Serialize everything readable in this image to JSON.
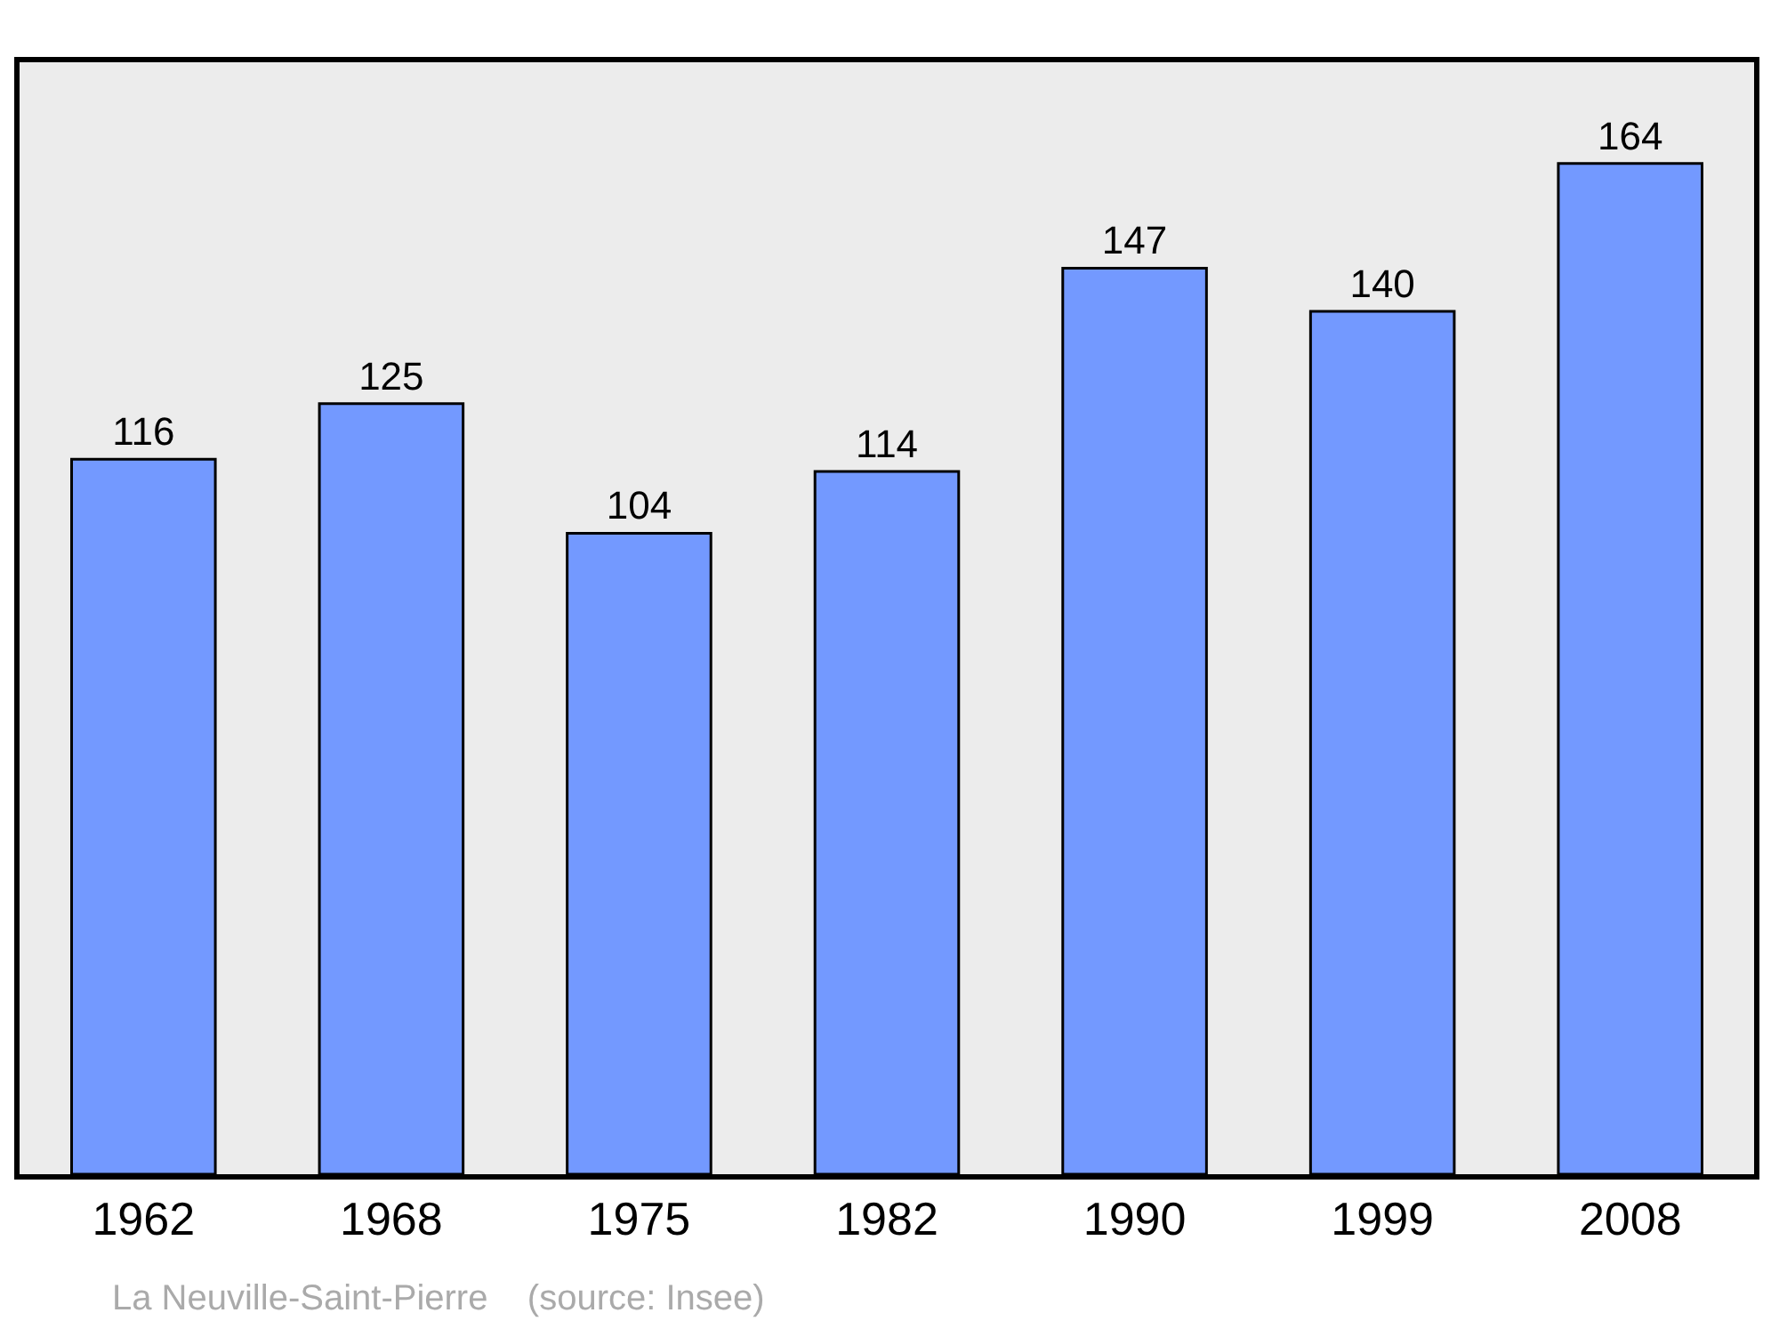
{
  "chart_data": {
    "type": "bar",
    "categories": [
      "1962",
      "1968",
      "1975",
      "1982",
      "1990",
      "1999",
      "2008"
    ],
    "values": [
      116,
      125,
      104,
      114,
      147,
      140,
      164
    ],
    "color": "#7399ff",
    "data_labels": true,
    "grid": false,
    "legend": false,
    "tick_labels": "x",
    "annotations": [
      "La Neuville-Saint-Pierre    (source: Insee)"
    ]
  }
}
